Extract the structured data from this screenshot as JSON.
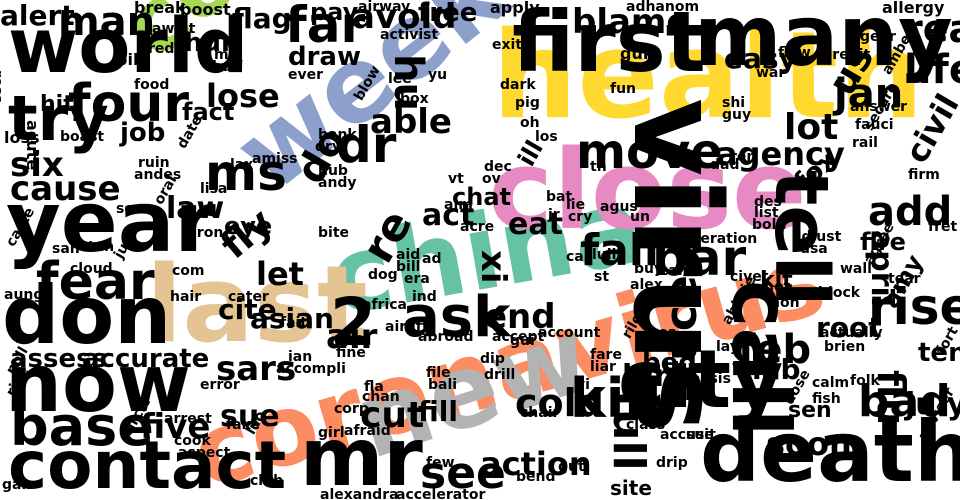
{
  "words": [
    {
      "text": "coronavirus",
      "color": "#fc8d62"
    },
    {
      "text": "health",
      "color": "#ffd92f"
    },
    {
      "text": "china",
      "color": "#66c2a5"
    },
    {
      "text": "close",
      "color": "#e78ac3"
    },
    {
      "text": "week",
      "color": "#8da0cb"
    },
    {
      "text": "country",
      "color": "#a6d854"
    },
    {
      "text": "last",
      "color": "#e5c494"
    },
    {
      "text": "new",
      "color": "#b3b3b3"
    },
    {
      "text": "virus",
      "color": "#000000"
    },
    {
      "text": "first",
      "color": "#000000"
    },
    {
      "text": "many",
      "color": "#000000"
    },
    {
      "text": "world",
      "color": "#000000"
    },
    {
      "text": "year",
      "color": "#000000"
    },
    {
      "text": "don",
      "color": "#000000"
    },
    {
      "text": "now",
      "color": "#000000"
    },
    {
      "text": "contact",
      "color": "#000000"
    },
    {
      "text": "city",
      "color": "#000000"
    },
    {
      "text": "death",
      "color": "#000000"
    },
    {
      "text": "mr",
      "color": "#000000"
    },
    {
      "text": "call",
      "color": "#000000"
    },
    {
      "text": "tell",
      "color": "#000000"
    },
    {
      "text": "try",
      "color": "#000000"
    },
    {
      "text": "four",
      "color": "#000000"
    },
    {
      "text": "base",
      "color": "#000000"
    },
    {
      "text": "fear",
      "color": "#000000"
    },
    {
      "text": "ask",
      "color": "#000000"
    },
    {
      "text": "kill",
      "color": "#000000"
    },
    {
      "text": "move",
      "color": "#000000"
    },
    {
      "text": "bar",
      "color": "#000000"
    },
    {
      "text": "fall",
      "color": "#000000"
    },
    {
      "text": "rise",
      "color": "#000000"
    },
    {
      "text": "bad",
      "color": "#000000"
    },
    {
      "text": "dr",
      "color": "#000000"
    },
    {
      "text": "ms",
      "color": "#000000"
    },
    {
      "text": "far",
      "color": "#000000"
    },
    {
      "text": "man",
      "color": "#000000"
    },
    {
      "text": "cause",
      "color": "#000000"
    },
    {
      "text": "six",
      "color": "#000000"
    },
    {
      "text": "full",
      "color": "#000000"
    },
    {
      "text": "face",
      "color": "#000000"
    },
    {
      "text": "see",
      "color": "#000000"
    },
    {
      "text": "feb",
      "color": "#000000"
    },
    {
      "text": "cut",
      "color": "#000000"
    },
    {
      "text": "cold",
      "color": "#000000"
    },
    {
      "text": "five",
      "color": "#000000"
    },
    {
      "text": "jan",
      "color": "#000000"
    },
    {
      "text": "lot",
      "color": "#000000"
    },
    {
      "text": "add",
      "color": "#000000"
    },
    {
      "text": "life",
      "color": "#000000"
    },
    {
      "text": "real",
      "color": "#000000"
    },
    {
      "text": "2",
      "color": "#000000"
    },
    {
      "text": "re",
      "color": "#000000"
    },
    {
      "text": "hu",
      "color": "#000000"
    },
    {
      "text": "do",
      "color": "#000000"
    },
    {
      "text": "us",
      "color": "#000000"
    },
    {
      "text": "flu",
      "color": "#000000"
    },
    {
      "text": "sars",
      "color": "#000000"
    },
    {
      "text": "air",
      "color": "#000000"
    },
    {
      "text": "end",
      "color": "#000000"
    },
    {
      "text": "able",
      "color": "#000000"
    },
    {
      "text": "avoid",
      "color": "#000000"
    },
    {
      "text": "blame",
      "color": "#000000"
    },
    {
      "text": "agency",
      "color": "#000000"
    },
    {
      "text": "lose",
      "color": "#000000"
    },
    {
      "text": "law",
      "color": "#000000"
    },
    {
      "text": "let",
      "color": "#000000"
    },
    {
      "text": "fly",
      "color": "#000000"
    },
    {
      "text": "act",
      "color": "#000000"
    },
    {
      "text": "eat",
      "color": "#000000"
    },
    {
      "text": "action",
      "color": "#000000"
    },
    {
      "text": "soon",
      "color": "#000000"
    },
    {
      "text": "sue",
      "color": "#000000"
    },
    {
      "text": "xi",
      "color": "#000000"
    },
    {
      "text": "civil",
      "color": "#000000"
    },
    {
      "text": "april",
      "color": "#000000"
    },
    {
      "text": "july",
      "color": "#000000"
    },
    {
      "text": "ten",
      "color": "#000000"
    },
    {
      "text": "lab",
      "color": "#000000"
    },
    {
      "text": "fox",
      "color": "#000000"
    },
    {
      "text": "fire",
      "color": "#000000"
    },
    {
      "text": "cite",
      "color": "#000000"
    },
    {
      "text": "asian",
      "color": "#000000"
    },
    {
      "text": "fill",
      "color": "#000000"
    },
    {
      "text": "bind",
      "color": "#000000"
    },
    {
      "text": "sit",
      "color": "#000000"
    },
    {
      "text": "bed",
      "color": "#000000"
    },
    {
      "text": "root",
      "color": "#000000"
    },
    {
      "text": "kit",
      "color": "#000000"
    },
    {
      "text": "amy",
      "color": "#000000"
    },
    {
      "text": "alert",
      "color": "#000000"
    },
    {
      "text": "flag",
      "color": "#000000"
    },
    {
      "text": "pay",
      "color": "#000000"
    },
    {
      "text": "draw",
      "color": "#000000"
    },
    {
      "text": "free",
      "color": "#000000"
    },
    {
      "text": "easy",
      "color": "#000000"
    },
    {
      "text": "fact",
      "color": "#000000"
    },
    {
      "text": "job",
      "color": "#000000"
    },
    {
      "text": "eye",
      "color": "#000000"
    },
    {
      "text": "chat",
      "color": "#000000"
    },
    {
      "text": "accurate",
      "color": "#000000"
    },
    {
      "text": "assess",
      "color": "#000000"
    },
    {
      "text": "hun",
      "color": "#000000"
    },
    {
      "text": "hit",
      "color": "#000000"
    },
    {
      "text": "ill",
      "color": "#000000"
    },
    {
      "text": "sen",
      "color": "#000000"
    },
    {
      "text": "site",
      "color": "#000000"
    },
    {
      "text": "break",
      "color": "#000000"
    },
    {
      "text": "boost",
      "color": "#000000"
    },
    {
      "text": "airway",
      "color": "#000000"
    },
    {
      "text": "apply",
      "color": "#000000"
    },
    {
      "text": "allergy",
      "color": "#000000"
    },
    {
      "text": "activist",
      "color": "#000000"
    },
    {
      "text": "await",
      "color": "#000000"
    },
    {
      "text": "pile",
      "color": "#000000"
    },
    {
      "text": "ross",
      "color": "#000000"
    },
    {
      "text": "loss",
      "color": "#000000"
    },
    {
      "text": "acute",
      "color": "#000000"
    },
    {
      "text": "red",
      "color": "#000000"
    },
    {
      "text": "mg",
      "color": "#000000"
    },
    {
      "text": "half",
      "color": "#000000"
    },
    {
      "text": "ever",
      "color": "#000000"
    },
    {
      "text": "lee",
      "color": "#000000"
    },
    {
      "text": "yu",
      "color": "#000000"
    },
    {
      "text": "exit",
      "color": "#000000"
    },
    {
      "text": "dark",
      "color": "#000000"
    },
    {
      "text": "adhanom",
      "color": "#000000"
    },
    {
      "text": "gun",
      "color": "#000000"
    },
    {
      "text": "flaw",
      "color": "#000000"
    },
    {
      "text": "credit",
      "color": "#000000"
    },
    {
      "text": "gear",
      "color": "#000000"
    },
    {
      "text": "amber",
      "color": "#000000"
    },
    {
      "text": "fun",
      "color": "#000000"
    },
    {
      "text": "war",
      "color": "#000000"
    },
    {
      "text": "answer",
      "color": "#000000"
    },
    {
      "text": "fauci",
      "color": "#000000"
    },
    {
      "text": "shi",
      "color": "#000000"
    },
    {
      "text": "guy",
      "color": "#000000"
    },
    {
      "text": "secure",
      "color": "#000000"
    },
    {
      "text": "rail",
      "color": "#000000"
    },
    {
      "text": "firm",
      "color": "#000000"
    },
    {
      "text": "food",
      "color": "#000000"
    },
    {
      "text": "boast",
      "color": "#000000"
    },
    {
      "text": "date",
      "color": "#000000"
    },
    {
      "text": "blow",
      "color": "#000000"
    },
    {
      "text": "box",
      "color": "#000000"
    },
    {
      "text": "pig",
      "color": "#000000"
    },
    {
      "text": "oh",
      "color": "#000000"
    },
    {
      "text": "los",
      "color": "#000000"
    },
    {
      "text": "bank",
      "color": "#000000"
    },
    {
      "text": "dry",
      "color": "#000000"
    },
    {
      "text": "ruin",
      "color": "#000000"
    },
    {
      "text": "andes",
      "color": "#000000"
    },
    {
      "text": "lax",
      "color": "#000000"
    },
    {
      "text": "amiss",
      "color": "#000000"
    },
    {
      "text": "hub",
      "color": "#000000"
    },
    {
      "text": "andy",
      "color": "#000000"
    },
    {
      "text": "lisa",
      "color": "#000000"
    },
    {
      "text": "dad",
      "color": "#000000"
    },
    {
      "text": "ren",
      "color": "#000000"
    },
    {
      "text": "des",
      "color": "#000000"
    },
    {
      "text": "list",
      "color": "#000000"
    },
    {
      "text": "bold",
      "color": "#000000"
    },
    {
      "text": "dec",
      "color": "#000000"
    },
    {
      "text": "ov",
      "color": "#000000"
    },
    {
      "text": "vt",
      "color": "#000000"
    },
    {
      "text": "aim",
      "color": "#000000"
    },
    {
      "text": "lie",
      "color": "#000000"
    },
    {
      "text": "cry",
      "color": "#000000"
    },
    {
      "text": "bat",
      "color": "#000000"
    },
    {
      "text": "agus",
      "color": "#000000"
    },
    {
      "text": "un",
      "color": "#000000"
    },
    {
      "text": "th",
      "color": "#000000"
    },
    {
      "text": "acre",
      "color": "#000000"
    },
    {
      "text": "jr",
      "color": "#000000"
    },
    {
      "text": "acceleration",
      "color": "#000000"
    },
    {
      "text": "adjust",
      "color": "#000000"
    },
    {
      "text": "usa",
      "color": "#000000"
    },
    {
      "text": "fret",
      "color": "#000000"
    },
    {
      "text": "oral",
      "color": "#000000"
    },
    {
      "text": "sex",
      "color": "#000000"
    },
    {
      "text": "iron",
      "color": "#000000"
    },
    {
      "text": "bite",
      "color": "#000000"
    },
    {
      "text": "tan",
      "color": "#000000"
    },
    {
      "text": "caste",
      "color": "#000000"
    },
    {
      "text": "san",
      "color": "#000000"
    },
    {
      "text": "jun",
      "color": "#000000"
    },
    {
      "text": "cloud",
      "color": "#000000"
    },
    {
      "text": "com",
      "color": "#000000"
    },
    {
      "text": "hair",
      "color": "#000000"
    },
    {
      "text": "cater",
      "color": "#000000"
    },
    {
      "text": "dog",
      "color": "#000000"
    },
    {
      "text": "aid",
      "color": "#000000"
    },
    {
      "text": "bill",
      "color": "#000000"
    },
    {
      "text": "era",
      "color": "#000000"
    },
    {
      "text": "ad",
      "color": "#000000"
    },
    {
      "text": "ind",
      "color": "#000000"
    },
    {
      "text": "car",
      "color": "#000000"
    },
    {
      "text": "lull",
      "color": "#000000"
    },
    {
      "text": "st",
      "color": "#000000"
    },
    {
      "text": "buy",
      "color": "#000000"
    },
    {
      "text": "calif",
      "color": "#000000"
    },
    {
      "text": "alex",
      "color": "#000000"
    },
    {
      "text": "civet",
      "color": "#000000"
    },
    {
      "text": "hot",
      "color": "#000000"
    },
    {
      "text": "non",
      "color": "#000000"
    },
    {
      "text": "block",
      "color": "#000000"
    },
    {
      "text": "wall",
      "color": "#000000"
    },
    {
      "text": "agree",
      "color": "#000000"
    },
    {
      "text": "tear",
      "color": "#000000"
    },
    {
      "text": "aung",
      "color": "#000000"
    },
    {
      "text": "fait",
      "color": "#000000"
    },
    {
      "text": "africa",
      "color": "#000000"
    },
    {
      "text": "airlift",
      "color": "#000000"
    },
    {
      "text": "abroad",
      "color": "#000000"
    },
    {
      "text": "accept",
      "color": "#000000"
    },
    {
      "text": "account",
      "color": "#000000"
    },
    {
      "text": "rile",
      "color": "#000000"
    },
    {
      "text": "abbvie",
      "color": "#000000"
    },
    {
      "text": "actually",
      "color": "#000000"
    },
    {
      "text": "brien",
      "color": "#000000"
    },
    {
      "text": "app",
      "color": "#000000"
    },
    {
      "text": "fine",
      "color": "#000000"
    },
    {
      "text": "ian",
      "color": "#000000"
    },
    {
      "text": "accompli",
      "color": "#000000"
    },
    {
      "text": "gui",
      "color": "#000000"
    },
    {
      "text": "dip",
      "color": "#000000"
    },
    {
      "text": "lay",
      "color": "#000000"
    },
    {
      "text": "poll",
      "color": "#000000"
    },
    {
      "text": "ride",
      "color": "#000000"
    },
    {
      "text": "error",
      "color": "#000000"
    },
    {
      "text": "fla",
      "color": "#000000"
    },
    {
      "text": "file",
      "color": "#000000"
    },
    {
      "text": "bali",
      "color": "#000000"
    },
    {
      "text": "drill",
      "color": "#000000"
    },
    {
      "text": "fare",
      "color": "#000000"
    },
    {
      "text": "liar",
      "color": "#000000"
    },
    {
      "text": "sea",
      "color": "#000000"
    },
    {
      "text": "beat",
      "color": "#000000"
    },
    {
      "text": "basis",
      "color": "#000000"
    },
    {
      "text": "calm",
      "color": "#000000"
    },
    {
      "text": "folk",
      "color": "#000000"
    },
    {
      "text": "fort",
      "color": "#000000"
    },
    {
      "text": "arrest",
      "color": "#000000"
    },
    {
      "text": "chan",
      "color": "#000000"
    },
    {
      "text": "corp",
      "color": "#000000"
    },
    {
      "text": "chair",
      "color": "#000000"
    },
    {
      "text": "yi",
      "color": "#000000"
    },
    {
      "text": "class",
      "color": "#000000"
    },
    {
      "text": "dose",
      "color": "#000000"
    },
    {
      "text": "fish",
      "color": "#000000"
    },
    {
      "text": "adviser",
      "color": "#000000"
    },
    {
      "text": "circle",
      "color": "#000000"
    },
    {
      "text": "cook",
      "color": "#000000"
    },
    {
      "text": "aspect",
      "color": "#000000"
    },
    {
      "text": "fake",
      "color": "#000000"
    },
    {
      "text": "luo",
      "color": "#000000"
    },
    {
      "text": "girl",
      "color": "#000000"
    },
    {
      "text": "afraid",
      "color": "#000000"
    },
    {
      "text": "accuse",
      "color": "#000000"
    },
    {
      "text": "drip",
      "color": "#000000"
    },
    {
      "text": "suit",
      "color": "#000000"
    },
    {
      "text": "gan",
      "color": "#000000"
    },
    {
      "text": "club",
      "color": "#000000"
    },
    {
      "text": "few",
      "color": "#000000"
    },
    {
      "text": "bend",
      "color": "#000000"
    },
    {
      "text": "gut",
      "color": "#000000"
    },
    {
      "text": "alexandra",
      "color": "#000000"
    },
    {
      "text": "accelerator",
      "color": "#000000"
    }
  ]
}
